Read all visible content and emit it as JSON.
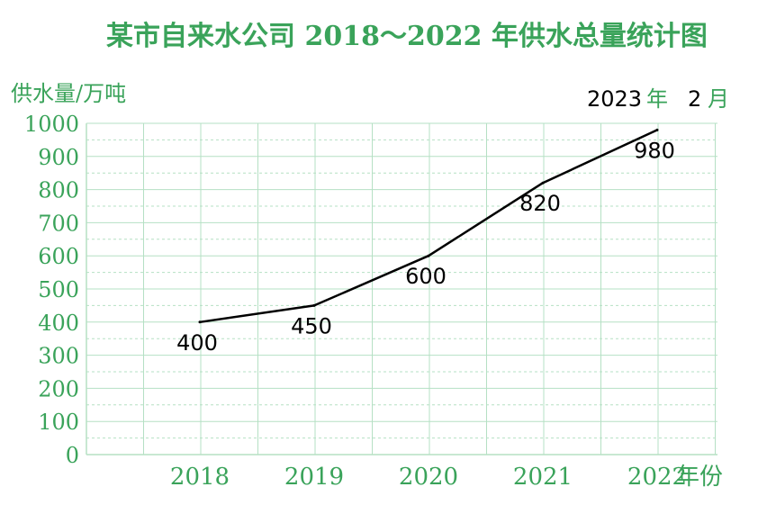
{
  "chart_data": {
    "type": "line",
    "title": "某市自来水公司 2018～2022 年供水总量统计图",
    "ylabel": "供水量/万吨",
    "xlabel": "年份",
    "categories": [
      "2018",
      "2019",
      "2020",
      "2021",
      "2022"
    ],
    "series": [
      {
        "values": [
          400,
          450,
          600,
          820,
          980
        ]
      }
    ],
    "ylim": [
      0,
      1000
    ],
    "yticks": [
      0,
      100,
      200,
      300,
      400,
      500,
      600,
      700,
      800,
      900,
      1000
    ],
    "grid": true,
    "annotation": {
      "year": "2023",
      "year_unit": "年",
      "month": "2",
      "month_unit": "月"
    }
  },
  "colors": {
    "grid": "#b5e0c4",
    "axis_text": "#3aa35a",
    "line": "#000000"
  }
}
